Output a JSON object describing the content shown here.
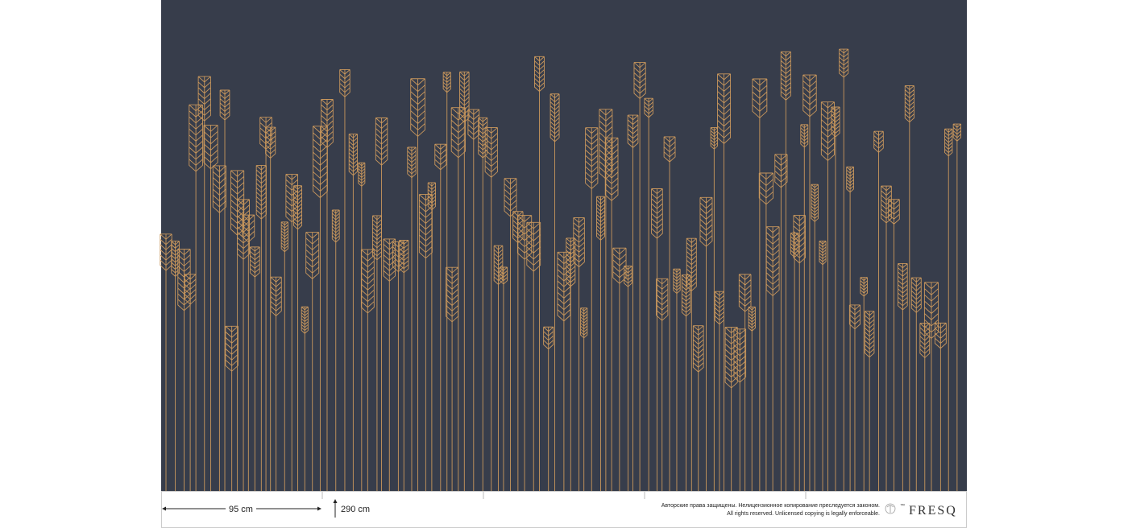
{
  "dimensions": {
    "width": "95 cm",
    "height": "290 cm"
  },
  "copyright": {
    "ru": "Авторские права защищены. Нелицензионное копирование преследуется законом.",
    "en": "All rights reserved. Unlicensed copying is legally enforceable."
  },
  "brand": {
    "trademark": "™",
    "name": "FRESQ"
  }
}
